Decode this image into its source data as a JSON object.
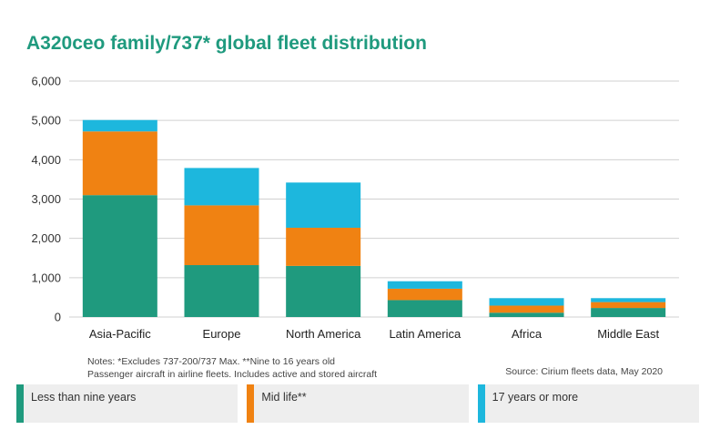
{
  "chart_data": {
    "type": "bar",
    "stacked": true,
    "title": "A320ceo family/737* global fleet distribution",
    "categories": [
      "Asia-Pacific",
      "Europe",
      "North America",
      "Latin America",
      "Africa",
      "Middle East"
    ],
    "series": [
      {
        "name": "Less than nine years",
        "color": "#1f9a7e",
        "values": [
          3100,
          1320,
          1300,
          430,
          110,
          230
        ]
      },
      {
        "name": "Mid life**",
        "color": "#f08212",
        "values": [
          1620,
          1520,
          970,
          290,
          180,
          150
        ]
      },
      {
        "name": "17 years or more",
        "color": "#1db7dd",
        "values": [
          290,
          950,
          1150,
          190,
          190,
          100
        ]
      }
    ],
    "ylim": [
      0,
      6000
    ],
    "yticks": [
      0,
      1000,
      2000,
      3000,
      4000,
      5000,
      6000
    ],
    "ytick_labels": [
      "0",
      "1,000",
      "2,000",
      "3,000",
      "4,000",
      "5,000",
      "6,000"
    ],
    "grid": true,
    "legend_position": "bottom"
  },
  "notes": {
    "line1": "Notes: *Excludes 737-200/737 Max. **Nine to 16 years old",
    "line2": "Passenger aircraft in airline fleets. Includes active and stored aircraft"
  },
  "source": "Source: Cirium fleets data, May 2020"
}
